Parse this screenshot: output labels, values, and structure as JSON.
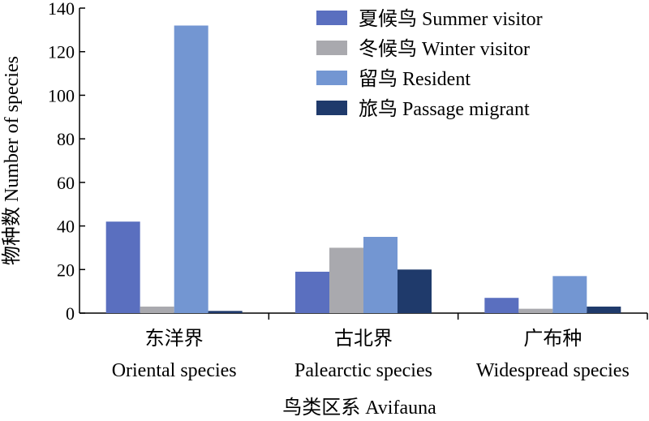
{
  "chart_data": {
    "type": "bar",
    "categories": [
      {
        "zh": "东洋界",
        "en": "Oriental species"
      },
      {
        "zh": "古北界",
        "en": "Palearctic species"
      },
      {
        "zh": "广布种",
        "en": "Widespread species"
      }
    ],
    "series": [
      {
        "name": "夏候鸟 Summer visitor",
        "color": "#5a6fbf",
        "values": [
          42,
          19,
          7
        ]
      },
      {
        "name": "冬候鸟 Winter visitor",
        "color": "#a9a9ae",
        "values": [
          3,
          30,
          2
        ]
      },
      {
        "name": "留鸟 Resident",
        "color": "#7396d2",
        "values": [
          132,
          35,
          17
        ]
      },
      {
        "name": "旅鸟 Passage migrant",
        "color": "#1f3a6b",
        "values": [
          1,
          20,
          3
        ]
      }
    ],
    "ylim": [
      0,
      140
    ],
    "yticks": [
      0,
      20,
      40,
      60,
      80,
      100,
      120,
      140
    ],
    "xlabel": "鸟类区系 Avifauna",
    "ylabel": "物种数 Number of species",
    "legend_position": "top-right"
  }
}
